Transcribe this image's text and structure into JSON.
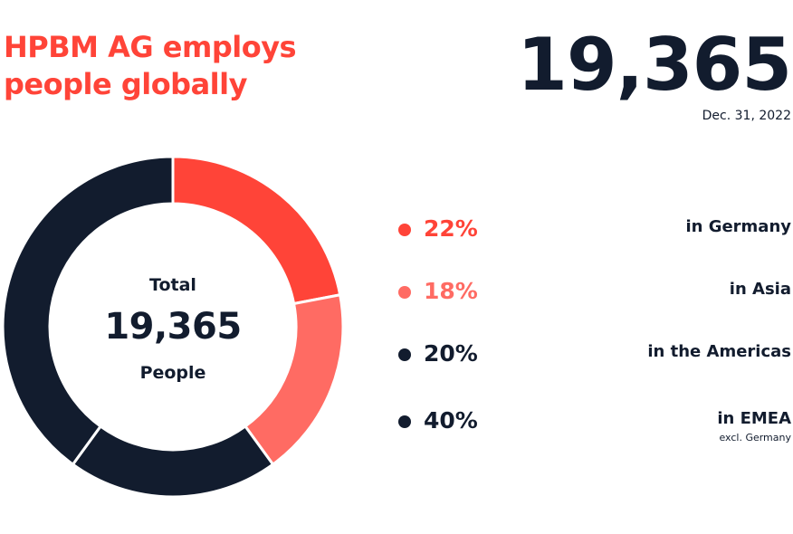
{
  "header": {
    "title_line1": "HPBM AG employs",
    "title_line2": "people globally",
    "headline_number": "19,365",
    "headline_date": "Dec. 31, 2022"
  },
  "chart_data": {
    "type": "pie",
    "center": {
      "top": "Total",
      "value": "19,365",
      "bottom": "People"
    },
    "slices": [
      {
        "label": "in Germany",
        "value": 22,
        "value_label": "22%",
        "color": "#ff4438",
        "text_color": "#ff4438",
        "note": ""
      },
      {
        "label": "in Asia",
        "value": 18,
        "value_label": "18%",
        "color": "#ff6b63",
        "text_color": "#ff6b63",
        "note": ""
      },
      {
        "label": "in the Americas",
        "value": 20,
        "value_label": "20%",
        "color": "#121c2e",
        "text_color": "#121c2e",
        "note": ""
      },
      {
        "label": "in EMEA",
        "value": 40,
        "value_label": "40%",
        "color": "#121c2e",
        "text_color": "#121c2e",
        "note": "excl. Germany"
      }
    ]
  }
}
